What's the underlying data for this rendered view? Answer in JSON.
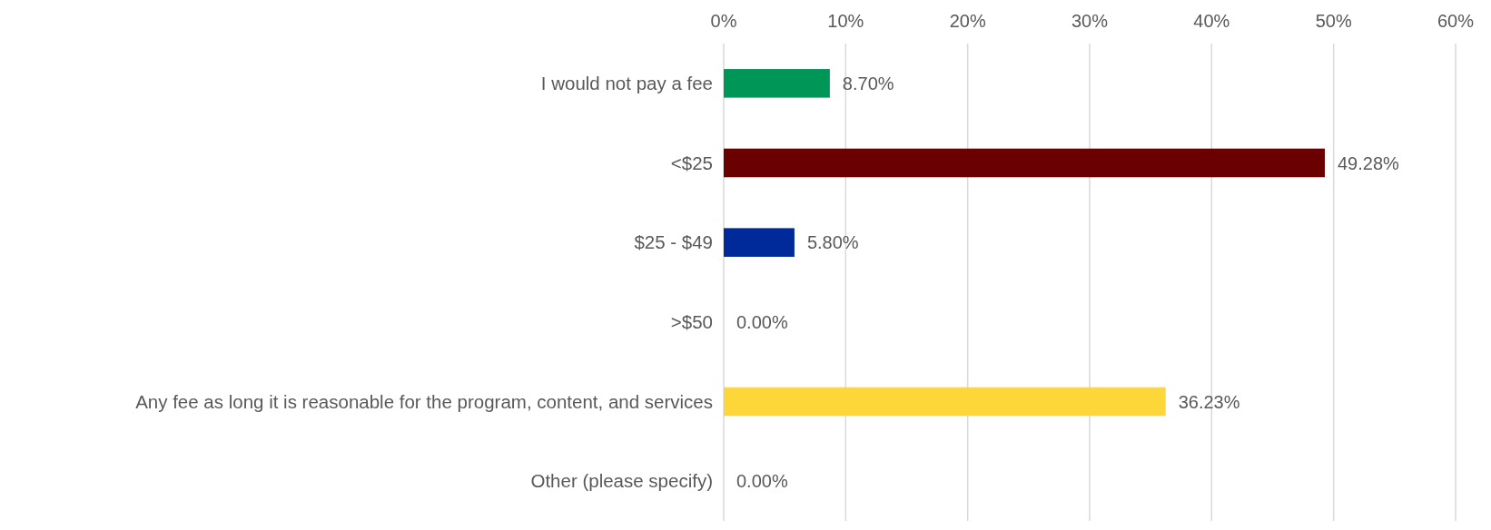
{
  "chart_data": {
    "type": "bar",
    "orientation": "horizontal",
    "categories": [
      "I would not pay a fee",
      "<$25",
      "$25 - $49",
      ">$50",
      "Any fee as long it is reasonable for the program, content, and services",
      "Other (please specify)"
    ],
    "values": [
      8.7,
      49.28,
      5.8,
      0,
      36.23,
      0
    ],
    "value_labels": [
      "8.70%",
      "49.28%",
      "5.80%",
      "0.00%",
      "36.23%",
      "0.00%"
    ],
    "colors": [
      "#009658",
      "#6b0000",
      "#002a9a",
      "#7f7f7f",
      "#fdd73a",
      "#7f7f7f"
    ],
    "xlim": [
      0,
      60
    ],
    "xticks": [
      {
        "value": 0,
        "label": "0%"
      },
      {
        "value": 10,
        "label": "10%"
      },
      {
        "value": 20,
        "label": "20%"
      },
      {
        "value": 30,
        "label": "30%"
      },
      {
        "value": 40,
        "label": "40%"
      },
      {
        "value": 50,
        "label": "50%"
      },
      {
        "value": 60,
        "label": "60%"
      }
    ],
    "grid": "x"
  }
}
